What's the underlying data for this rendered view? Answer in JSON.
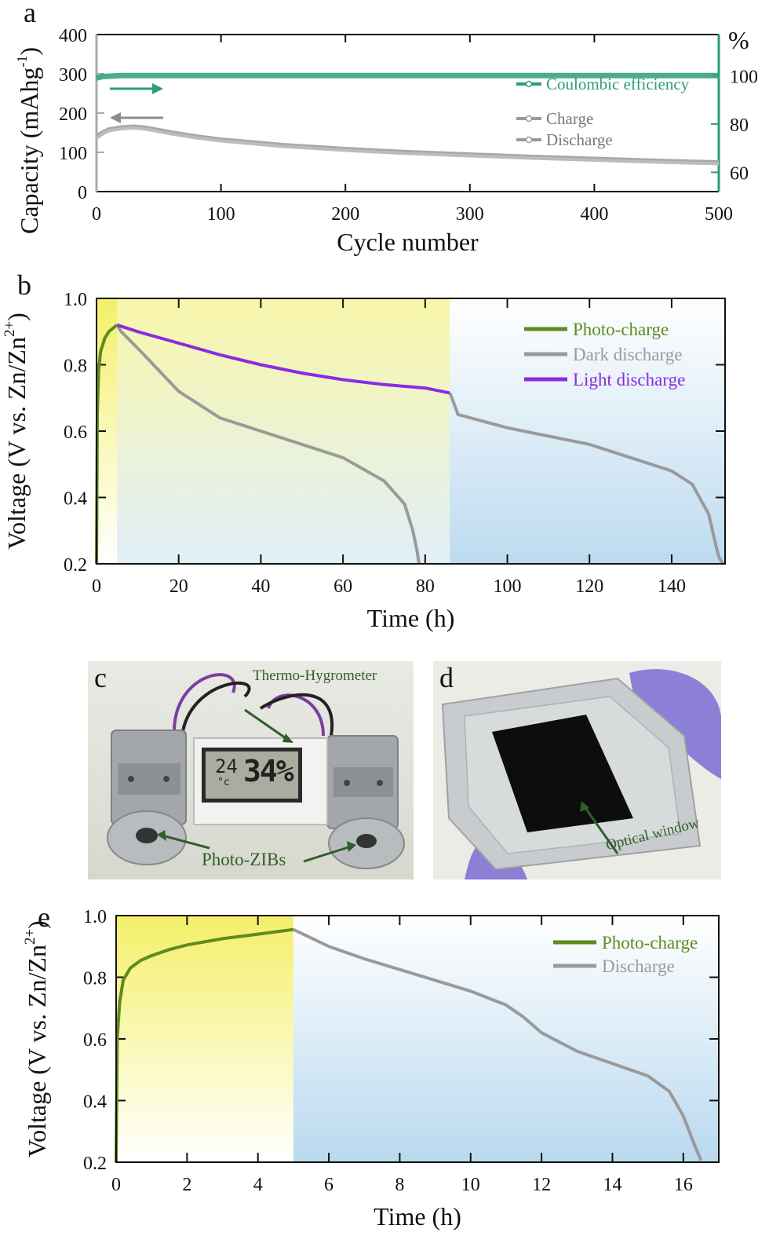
{
  "panels": {
    "a": "a",
    "b": "b",
    "c": "c",
    "d": "d",
    "e": "e"
  },
  "colors": {
    "charge_green": "#5e8a1e",
    "gray": "#9a9a9a",
    "purple": "#8a2be2",
    "teal": "#2a9d7c",
    "capacity_axis": "#a7aaa7"
  },
  "chart_data": [
    {
      "id": "a",
      "type": "line",
      "xlabel": "Cycle number",
      "ylabel_left": "Capacity (mAhg",
      "ylabel_left_sup": "-1",
      "ylabel_left_end": ")",
      "ylabel_right": "%",
      "xlim": [
        0,
        500
      ],
      "ylim_left": [
        0,
        400
      ],
      "ylim_right": [
        52,
        117
      ],
      "x_ticks": [
        "0",
        "100",
        "200",
        "300",
        "400",
        "500"
      ],
      "y_ticks_left": [
        "0",
        "100",
        "200",
        "300",
        "400"
      ],
      "y_ticks_right": [
        "60",
        "80",
        "100"
      ],
      "series": [
        {
          "name": "Coulombic efficiency",
          "axis": "right",
          "x": [
            0,
            5,
            20,
            50,
            100,
            200,
            300,
            400,
            500
          ],
          "y": [
            99,
            99.6,
            100,
            100,
            100,
            100,
            100,
            100,
            100
          ]
        },
        {
          "name": "Charge",
          "axis": "left",
          "x": [
            0,
            5,
            10,
            20,
            30,
            40,
            60,
            80,
            100,
            150,
            200,
            250,
            300,
            350,
            400,
            450,
            500
          ],
          "y": [
            140,
            150,
            158,
            163,
            165,
            162,
            150,
            140,
            132,
            118,
            108,
            100,
            94,
            88,
            83,
            78,
            74
          ]
        },
        {
          "name": "Discharge",
          "axis": "left",
          "x": [
            0,
            5,
            10,
            20,
            30,
            40,
            60,
            80,
            100,
            150,
            200,
            250,
            300,
            350,
            400,
            450,
            500
          ],
          "y": [
            136,
            147,
            155,
            160,
            162,
            159,
            147,
            137,
            129,
            115,
            105,
            97,
            91,
            85,
            80,
            75,
            71
          ]
        }
      ]
    },
    {
      "id": "b",
      "type": "line",
      "xlabel": "Time (h)",
      "ylabel": "Voltage (V vs. Zn/Zn",
      "ylabel_sup": "2+",
      "ylabel_end": ")",
      "xlim": [
        0,
        153
      ],
      "ylim": [
        0.2,
        1.0
      ],
      "x_ticks": [
        "0",
        "20",
        "40",
        "60",
        "80",
        "100",
        "120",
        "140"
      ],
      "y_ticks": [
        "0.2",
        "0.4",
        "0.6",
        "0.8",
        "1.0"
      ],
      "illuminated_until": 86,
      "series": [
        {
          "name": "Photo-charge",
          "x": [
            0,
            0.2,
            0.5,
            1,
            2,
            3,
            4,
            5
          ],
          "y": [
            0.2,
            0.65,
            0.78,
            0.84,
            0.88,
            0.9,
            0.91,
            0.92
          ]
        },
        {
          "name": "Dark discharge",
          "x": [
            5,
            6,
            10,
            20,
            30,
            40,
            50,
            60,
            70,
            75,
            77,
            78,
            78.5,
            86,
            86.5,
            88,
            100,
            120,
            140,
            145,
            149,
            150.5,
            151.5,
            152.5
          ],
          "y": [
            0.92,
            0.9,
            0.85,
            0.72,
            0.64,
            0.6,
            0.56,
            0.52,
            0.45,
            0.38,
            0.3,
            0.24,
            0.2,
            0.715,
            0.7,
            0.65,
            0.61,
            0.56,
            0.48,
            0.44,
            0.35,
            0.27,
            0.22,
            0.2
          ]
        },
        {
          "name": "Light discharge",
          "x": [
            5,
            10,
            20,
            30,
            40,
            50,
            60,
            70,
            80,
            86
          ],
          "y": [
            0.92,
            0.9,
            0.865,
            0.83,
            0.8,
            0.775,
            0.755,
            0.74,
            0.73,
            0.715
          ]
        }
      ]
    },
    {
      "id": "e",
      "type": "line",
      "xlabel": "Time (h)",
      "ylabel": "Voltage (V vs. Zn/Zn",
      "ylabel_sup": "2+",
      "ylabel_end": ")",
      "xlim": [
        0,
        17
      ],
      "ylim": [
        0.2,
        1.0
      ],
      "x_ticks": [
        "0",
        "2",
        "4",
        "6",
        "8",
        "10",
        "12",
        "14",
        "16"
      ],
      "y_ticks": [
        "0.2",
        "0.4",
        "0.6",
        "0.8",
        "1.0"
      ],
      "illuminated_until": 5,
      "series": [
        {
          "name": "Photo-charge",
          "x": [
            0,
            0.03,
            0.1,
            0.2,
            0.4,
            0.7,
            1,
            1.5,
            2,
            3,
            4,
            5
          ],
          "y": [
            0.2,
            0.6,
            0.72,
            0.79,
            0.83,
            0.855,
            0.87,
            0.89,
            0.905,
            0.925,
            0.94,
            0.955
          ]
        },
        {
          "name": "Discharge",
          "x": [
            5,
            6,
            7,
            8,
            9,
            10,
            11,
            11.5,
            12,
            13,
            14,
            15,
            15.6,
            16,
            16.3,
            16.5
          ],
          "y": [
            0.955,
            0.9,
            0.86,
            0.825,
            0.79,
            0.755,
            0.71,
            0.67,
            0.62,
            0.56,
            0.52,
            0.48,
            0.43,
            0.35,
            0.26,
            0.205
          ]
        }
      ]
    }
  ],
  "photo_c": {
    "label_top": "Thermo-Hygrometer",
    "label_bottom": "Photo-ZIBs",
    "display_left": "24",
    "display_unit": "°c",
    "display_right": "34%"
  },
  "photo_d": {
    "label": "Optical window"
  }
}
